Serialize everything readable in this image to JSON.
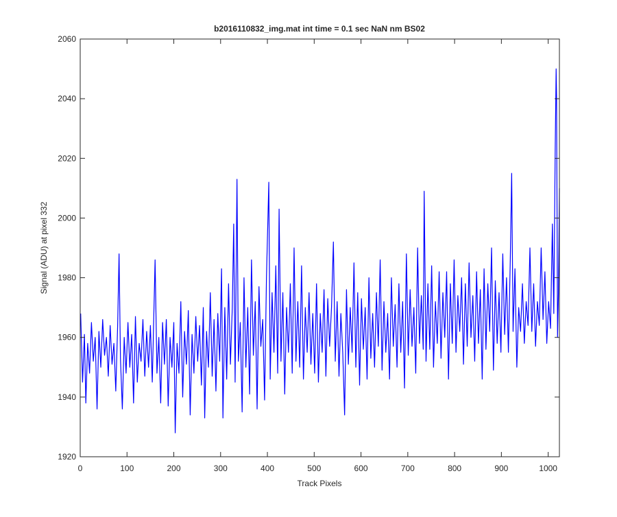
{
  "chart_data": {
    "type": "line",
    "title": "b2016110832_img.mat int time = 0.1 sec  NaN nm BS02",
    "x_label": "Track Pixels",
    "y_label": "Signal (ADU) at pixel 332",
    "color": "#0000ff",
    "xlim": [
      0,
      1024
    ],
    "ylim": [
      1920,
      2060
    ],
    "xticks": [
      0,
      100,
      200,
      300,
      400,
      500,
      600,
      700,
      800,
      900,
      1000
    ],
    "yticks": [
      1920,
      1940,
      1960,
      1980,
      2000,
      2020,
      2040,
      2060
    ],
    "x": [
      1,
      5,
      9,
      12,
      16,
      20,
      24,
      28,
      32,
      36,
      40,
      44,
      48,
      52,
      56,
      60,
      64,
      68,
      72,
      76,
      80,
      83,
      86,
      90,
      94,
      98,
      102,
      106,
      110,
      114,
      118,
      122,
      126,
      130,
      134,
      138,
      142,
      146,
      150,
      154,
      160,
      164,
      168,
      172,
      176,
      180,
      184,
      188,
      192,
      196,
      200,
      203,
      207,
      211,
      215,
      219,
      223,
      227,
      231,
      235,
      239,
      243,
      247,
      251,
      255,
      259,
      263,
      266,
      270,
      274,
      278,
      282,
      286,
      290,
      294,
      298,
      302,
      305,
      309,
      313,
      317,
      321,
      325,
      328,
      331,
      335,
      338,
      342,
      346,
      350,
      354,
      358,
      362,
      366,
      370,
      374,
      378,
      382,
      386,
      390,
      394,
      398,
      403,
      406,
      410,
      414,
      418,
      422,
      425,
      429,
      433,
      437,
      441,
      445,
      449,
      453,
      457,
      461,
      465,
      469,
      473,
      477,
      481,
      485,
      489,
      493,
      497,
      501,
      505,
      509,
      513,
      517,
      521,
      525,
      529,
      533,
      537,
      541,
      545,
      549,
      553,
      557,
      561,
      565,
      569,
      573,
      577,
      581,
      585,
      589,
      593,
      597,
      601,
      605,
      609,
      613,
      617,
      621,
      625,
      629,
      633,
      637,
      641,
      645,
      649,
      653,
      657,
      661,
      665,
      669,
      673,
      677,
      681,
      685,
      689,
      693,
      697,
      701,
      705,
      709,
      713,
      717,
      721,
      725,
      729,
      733,
      735,
      739,
      743,
      747,
      751,
      755,
      759,
      763,
      767,
      771,
      775,
      779,
      783,
      787,
      791,
      795,
      799,
      803,
      807,
      811,
      815,
      819,
      823,
      827,
      831,
      835,
      839,
      843,
      847,
      851,
      855,
      859,
      863,
      867,
      871,
      875,
      879,
      883,
      887,
      891,
      895,
      899,
      903,
      907,
      911,
      915,
      919,
      922,
      925,
      929,
      933,
      937,
      941,
      945,
      949,
      953,
      957,
      961,
      965,
      969,
      973,
      977,
      981,
      985,
      989,
      993,
      997,
      1001,
      1005,
      1009,
      1012,
      1015,
      1017,
      1018,
      1020,
      1022,
      1024
    ],
    "values": [
      1968,
      1945,
      1961,
      1938,
      1958,
      1948,
      1965,
      1952,
      1960,
      1936,
      1962,
      1950,
      1966,
      1954,
      1960,
      1947,
      1964,
      1951,
      1958,
      1942,
      1964,
      1988,
      1953,
      1936,
      1960,
      1948,
      1965,
      1950,
      1961,
      1938,
      1967,
      1945,
      1958,
      1952,
      1966,
      1947,
      1962,
      1950,
      1964,
      1945,
      1986,
      1948,
      1960,
      1938,
      1965,
      1951,
      1966,
      1937,
      1960,
      1950,
      1965,
      1928,
      1958,
      1948,
      1972,
      1940,
      1962,
      1951,
      1969,
      1934,
      1961,
      1948,
      1967,
      1952,
      1964,
      1944,
      1970,
      1933,
      1962,
      1950,
      1975,
      1947,
      1966,
      1942,
      1968,
      1952,
      1983,
      1933,
      1970,
      1946,
      1978,
      1951,
      1970,
      1998,
      1945,
      2013,
      1952,
      1965,
      1935,
      1980,
      1950,
      1970,
      1941,
      1986,
      1954,
      1972,
      1936,
      1977,
      1957,
      1966,
      1939,
      1980,
      2012,
      1946,
      1975,
      1955,
      1984,
      1948,
      2003,
      1952,
      1975,
      1941,
      1970,
      1955,
      1978,
      1948,
      1990,
      1952,
      1972,
      1950,
      1984,
      1946,
      1970,
      1955,
      1975,
      1951,
      1968,
      1948,
      1978,
      1945,
      1968,
      1955,
      1976,
      1947,
      1973,
      1957,
      1970,
      1992,
      1952,
      1972,
      1947,
      1968,
      1955,
      1934,
      1976,
      1951,
      1970,
      1955,
      1985,
      1950,
      1975,
      1944,
      1973,
      1956,
      1970,
      1946,
      1980,
      1953,
      1968,
      1950,
      1975,
      1957,
      1986,
      1949,
      1972,
      1955,
      1968,
      1946,
      1980,
      1957,
      1971,
      1950,
      1978,
      1955,
      1972,
      1943,
      1988,
      1954,
      1976,
      1957,
      1970,
      1948,
      1990,
      1958,
      1974,
      1956,
      2009,
      1952,
      1978,
      1956,
      1984,
      1950,
      1972,
      1958,
      1982,
      1953,
      1975,
      1960,
      1982,
      1946,
      1978,
      1958,
      1986,
      1955,
      1974,
      1962,
      1980,
      1951,
      1978,
      1957,
      1985,
      1960,
      1974,
      1952,
      1982,
      1958,
      1976,
      1946,
      1983,
      1956,
      1978,
      1962,
      1990,
      1949,
      1979,
      1958,
      1975,
      1955,
      1988,
      1961,
      1980,
      1955,
      1986,
      2015,
      1962,
      1983,
      1950,
      1970,
      1962,
      1978,
      1958,
      1972,
      1964,
      1990,
      1962,
      1978,
      1957,
      1972,
      1964,
      1990,
      1966,
      1982,
      1958,
      1972,
      1963,
      1998,
      1968,
      2023,
      2050,
      2040,
      1960,
      1975,
      2010
    ]
  }
}
